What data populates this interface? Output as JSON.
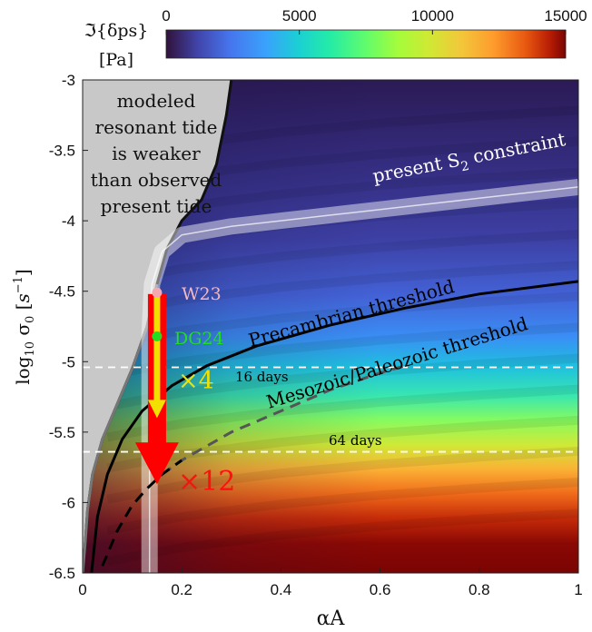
{
  "chart_data": {
    "type": "heatmap",
    "xlabel": "αA",
    "xlim": [
      0,
      1
    ],
    "ylim": [
      -6.5,
      -3
    ],
    "x_ticks": [
      "0",
      "0.2",
      "0.4",
      "0.6",
      "0.8",
      "1"
    ],
    "x_tick_values": [
      0,
      0.2,
      0.4,
      0.6,
      0.8,
      1
    ],
    "y_ticks": [
      "-3",
      "-3.5",
      "-4",
      "-4.5",
      "-5",
      "-5.5",
      "-6",
      "-6.5"
    ],
    "y_tick_values": [
      -3,
      -3.5,
      -4,
      -4.5,
      -5,
      -5.5,
      -6,
      -6.5
    ],
    "colorbar": {
      "label_line1": "ℑ{δps}",
      "label_line2": "[Pa]",
      "ticks": [
        "0",
        "5000",
        "10000",
        "15000"
      ],
      "tick_values": [
        0,
        5000,
        10000,
        15000
      ],
      "range": [
        0,
        15000
      ],
      "colormap": "turbo"
    },
    "annotations": {
      "gray_region": [
        "modeled",
        "resonant tide",
        "is weaker",
        "than observed",
        "present tide"
      ],
      "present_s2": "present S",
      "present_s2_sub": "2",
      "present_s2_tail": " constraint",
      "precambrian": "Precambrian threshold",
      "mesozoic": "Mesozoic/Paleozoic threshold",
      "days16": "16 days",
      "days64": "64 days",
      "w23": "W23",
      "dg24": "DG24",
      "times4": "×4",
      "times12": "×12"
    },
    "horizontal_lines": [
      {
        "label": "16 days",
        "y": -5.04
      },
      {
        "label": "64 days",
        "y": -5.64
      }
    ],
    "points": [
      {
        "name": "W23",
        "x": 0.15,
        "y": -4.51,
        "color": "#f4a8b0"
      },
      {
        "name": "DG24",
        "x": 0.15,
        "y": -4.82,
        "color": "#22dd22"
      }
    ],
    "arrows": [
      {
        "label": "×4",
        "x": 0.15,
        "y_from": -4.52,
        "y_to": -5.4,
        "color": "#f2e000"
      },
      {
        "label": "×12",
        "x": 0.15,
        "y_from": -4.52,
        "y_to": -5.87,
        "color": "#ff0000"
      }
    ],
    "curves": {
      "precambrian_threshold": {
        "x": [
          0.018,
          0.03,
          0.05,
          0.08,
          0.12,
          0.18,
          0.25,
          0.35,
          0.5,
          0.65,
          0.8,
          1.0
        ],
        "y": [
          -6.5,
          -6.1,
          -5.8,
          -5.55,
          -5.35,
          -5.17,
          -5.03,
          -4.89,
          -4.74,
          -4.62,
          -4.52,
          -4.43
        ]
      },
      "mesozoic_threshold": {
        "x": [
          0.04,
          0.07,
          0.1,
          0.13,
          0.16,
          0.2,
          0.25,
          0.3,
          0.4,
          0.5,
          0.6,
          0.65
        ],
        "y": [
          -6.45,
          -6.2,
          -6.02,
          -5.9,
          -5.8,
          -5.7,
          -5.6,
          -5.5,
          -5.35,
          -5.2,
          -5.08,
          -5.03
        ]
      },
      "weak_boundary": {
        "x": [
          0.0,
          0.005,
          0.01,
          0.02,
          0.04,
          0.07,
          0.1,
          0.13,
          0.15,
          0.17,
          0.2,
          0.24,
          0.27,
          0.29,
          0.3
        ],
        "y": [
          -6.5,
          -6.3,
          -6.05,
          -5.8,
          -5.55,
          -5.3,
          -5.05,
          -4.75,
          -4.45,
          -4.2,
          -4.0,
          -3.85,
          -3.6,
          -3.25,
          -3.0
        ]
      },
      "s2_band": {
        "x": [
          0.135,
          0.135,
          0.14,
          0.16,
          0.2,
          0.3,
          0.4,
          0.5,
          0.6,
          0.7,
          0.8,
          0.9,
          1.0
        ],
        "y": [
          -6.5,
          -4.8,
          -4.45,
          -4.22,
          -4.1,
          -4.04,
          -4.0,
          -3.96,
          -3.92,
          -3.88,
          -3.84,
          -3.8,
          -3.76
        ]
      }
    }
  }
}
